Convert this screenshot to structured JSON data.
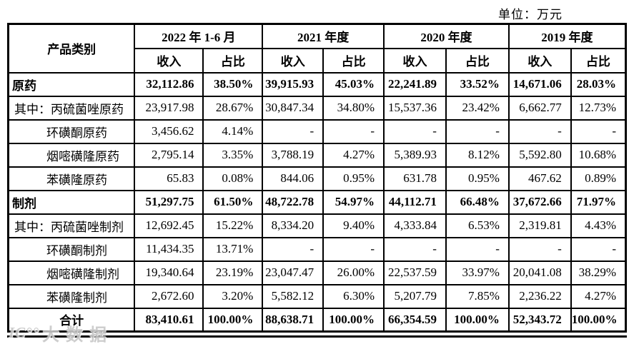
{
  "page": {
    "unit_label": "单位：万元"
  },
  "watermark": {
    "logo": "IC°°",
    "text": "大数据"
  },
  "table": {
    "product_col_header": "产品类别",
    "periods": [
      "2022 年 1-6 月",
      "2021 年度",
      "2020 年度",
      "2019 年度"
    ],
    "sub_income": "收入",
    "sub_share": "占比",
    "rows": [
      {
        "label": "原药",
        "style": "category",
        "cells": [
          "32,112.86",
          "38.50%",
          "39,915.93",
          "45.03%",
          "22,241.89",
          "33.52%",
          "14,671.06",
          "28.03%"
        ]
      },
      {
        "label": "其中：丙硫菌唑原药",
        "style": "detail",
        "cells": [
          "23,917.98",
          "28.67%",
          "30,847.34",
          "34.80%",
          "15,537.36",
          "23.42%",
          "6,662.77",
          "12.73%"
        ]
      },
      {
        "label": "环磺酮原药",
        "style": "sub",
        "cells": [
          "3,456.62",
          "4.14%",
          "-",
          "-",
          "-",
          "-",
          "-",
          "-"
        ]
      },
      {
        "label": "烟嘧磺隆原药",
        "style": "sub",
        "cells": [
          "2,795.14",
          "3.35%",
          "3,788.19",
          "4.27%",
          "5,389.93",
          "8.12%",
          "5,592.80",
          "10.68%"
        ]
      },
      {
        "label": "苯磺隆原药",
        "style": "sub",
        "cells": [
          "65.83",
          "0.08%",
          "844.06",
          "0.95%",
          "631.78",
          "0.95%",
          "467.62",
          "0.89%"
        ]
      },
      {
        "label": "制剂",
        "style": "category",
        "cells": [
          "51,297.75",
          "61.50%",
          "48,722.78",
          "54.97%",
          "44,112.71",
          "66.48%",
          "37,672.66",
          "71.97%"
        ]
      },
      {
        "label": "其中：丙硫菌唑制剂",
        "style": "detail",
        "cells": [
          "12,692.45",
          "15.22%",
          "8,334.20",
          "9.40%",
          "4,333.84",
          "6.53%",
          "2,319.81",
          "4.43%"
        ]
      },
      {
        "label": "环磺酮制剂",
        "style": "sub",
        "cells": [
          "11,434.35",
          "13.71%",
          "-",
          "-",
          "-",
          "-",
          "-",
          "-"
        ]
      },
      {
        "label": "烟嘧磺隆制剂",
        "style": "sub",
        "cells": [
          "19,340.64",
          "23.19%",
          "23,047.47",
          "26.00%",
          "22,537.59",
          "33.97%",
          "20,041.08",
          "38.29%"
        ]
      },
      {
        "label": "苯磺隆制剂",
        "style": "sub",
        "cells": [
          "2,672.60",
          "3.20%",
          "5,582.12",
          "6.30%",
          "5,207.79",
          "7.85%",
          "2,236.22",
          "4.27%"
        ]
      },
      {
        "label": "合计",
        "style": "total",
        "cells": [
          "83,410.61",
          "100.00%",
          "88,638.71",
          "100.00%",
          "66,354.59",
          "100.00%",
          "52,343.72",
          "100.00%"
        ]
      }
    ]
  }
}
